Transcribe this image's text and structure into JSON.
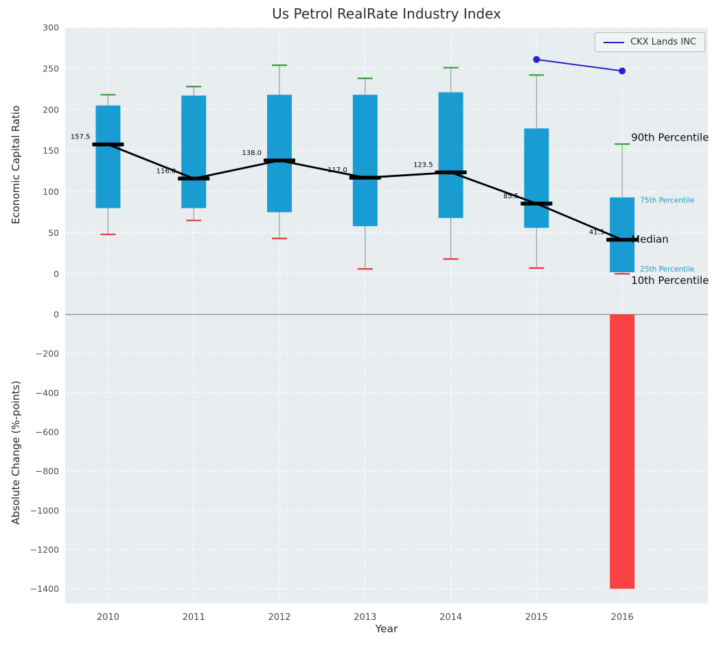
{
  "chart_data": [
    {
      "type": "boxplot",
      "title": "Us Petrol RealRate Industry Index",
      "ylabel": "Economic Capital Ratio",
      "xlim": [
        2009.5,
        2017.0
      ],
      "ylim": [
        -34,
        300
      ],
      "yticks": [
        300,
        250,
        200,
        150,
        100,
        50,
        0
      ],
      "categories": [
        2010,
        2011,
        2012,
        2013,
        2014,
        2015,
        2016
      ],
      "boxes": [
        {
          "year": 2010,
          "p10": 48,
          "p25": 80,
          "median": 157.5,
          "p75": 205,
          "p90": 218
        },
        {
          "year": 2011,
          "p10": 65,
          "p25": 80,
          "median": 116.0,
          "p75": 217,
          "p90": 228
        },
        {
          "year": 2012,
          "p10": 43,
          "p25": 75,
          "median": 138.0,
          "p75": 218,
          "p90": 254
        },
        {
          "year": 2013,
          "p10": 6,
          "p25": 58,
          "median": 117.0,
          "p75": 218,
          "p90": 238
        },
        {
          "year": 2014,
          "p10": 18,
          "p25": 68,
          "median": 123.5,
          "p75": 221,
          "p90": 251
        },
        {
          "year": 2015,
          "p10": 7,
          "p25": 56,
          "median": 85.5,
          "p75": 177,
          "p90": 242
        },
        {
          "year": 2016,
          "p10": 0,
          "p25": 2,
          "median": 41.5,
          "p75": 93,
          "p90": 158
        }
      ],
      "series": [
        {
          "name": "CKX Lands INC",
          "color": "#2222cc",
          "x": [
            2015,
            2016
          ],
          "values": [
            261,
            247
          ]
        }
      ],
      "annotations": [
        {
          "label": "90th Percentile",
          "value": 166,
          "style": "large"
        },
        {
          "label": "75th Percentile",
          "value": 90,
          "style": "small"
        },
        {
          "label": "Median",
          "value": 42,
          "style": "large"
        },
        {
          "label": "25th Percentile",
          "value": 6,
          "style": "small"
        },
        {
          "label": "10th Percentile",
          "value": -8,
          "style": "large"
        }
      ],
      "colors": {
        "box": "#189cd2",
        "median": "#000000",
        "median_line": "#000000",
        "whisker": "#a0a0a0",
        "cap_top": "#2ca02c",
        "cap_bottom": "#e83434",
        "background": "#e8eef0",
        "grid": "#ffffff"
      },
      "legend_position": "upper right",
      "grid": "dashed"
    },
    {
      "type": "bar",
      "ylabel": "Absolute Change (%-points)",
      "xlabel": "Year",
      "categories": [
        2010,
        2011,
        2012,
        2013,
        2014,
        2015,
        2016
      ],
      "values": [
        0,
        0,
        0,
        0,
        0,
        0,
        -1400
      ],
      "ylim": [
        -1475,
        65
      ],
      "yticks": [
        0,
        -200,
        -400,
        -600,
        -800,
        -1000,
        -1200,
        -1400
      ],
      "bar_color": "#fb4242",
      "zero_line_color": "#8f8f8f"
    }
  ]
}
